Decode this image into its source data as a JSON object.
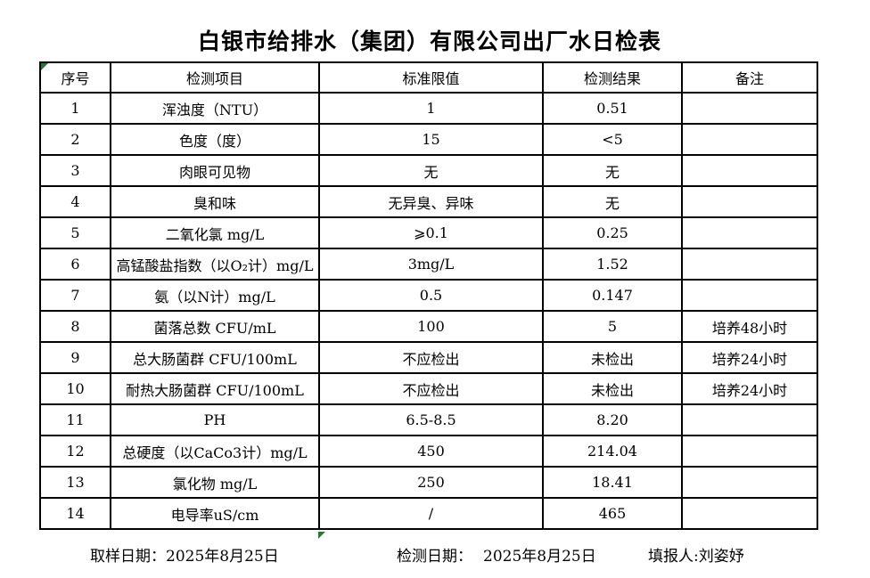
{
  "title": "白银市给排水（集团）有限公司出厂水日检表",
  "table": {
    "column_names": [
      "index",
      "item",
      "limit",
      "result",
      "note"
    ],
    "headers": [
      "序号",
      "检测项目",
      "标准限值",
      "检测结果",
      "备注"
    ],
    "rows": [
      [
        "1",
        "浑浊度（NTU）",
        "1",
        "0.51",
        ""
      ],
      [
        "2",
        "色度（度）",
        "15",
        "<5",
        ""
      ],
      [
        "3",
        "肉眼可见物",
        "无",
        "无",
        ""
      ],
      [
        "4",
        "臭和味",
        "无异臭、异味",
        "无",
        ""
      ],
      [
        "5",
        "二氧化氯 mg/L",
        "⩾0.1",
        "0.25",
        ""
      ],
      [
        "6",
        "高锰酸盐指数（以O₂计）mg/L",
        "3mg/L",
        "1.52",
        ""
      ],
      [
        "7",
        "氨（以N计）mg/L",
        "0.5",
        "0.147",
        ""
      ],
      [
        "8",
        "菌落总数 CFU/mL",
        "100",
        "5",
        "培养48小时"
      ],
      [
        "9",
        "总大肠菌群 CFU/100mL",
        "不应检出",
        "未检出",
        "培养24小时"
      ],
      [
        "10",
        "耐热大肠菌群 CFU/100mL",
        "不应检出",
        "未检出",
        "培养24小时"
      ],
      [
        "11",
        "PH",
        "6.5-8.5",
        "8.20",
        ""
      ],
      [
        "12",
        "总硬度（以CaCo3计）mg/L",
        "450",
        "214.04",
        ""
      ],
      [
        "13",
        "氯化物 mg/L",
        "250",
        "18.41",
        ""
      ],
      [
        "14",
        "电导率uS/cm",
        "/",
        "465",
        ""
      ]
    ]
  },
  "footer": {
    "sampling_date_label": "取样日期：",
    "sampling_date": "2025年8月25日",
    "test_date_label": "检测日期：",
    "test_date": "2025年8月25日",
    "reporter_label": "填报人:",
    "reporter": "刘姿妤"
  },
  "colors": {
    "marker_green": "#217a36",
    "border": "#000000",
    "background": "#ffffff",
    "text": "#000000"
  }
}
